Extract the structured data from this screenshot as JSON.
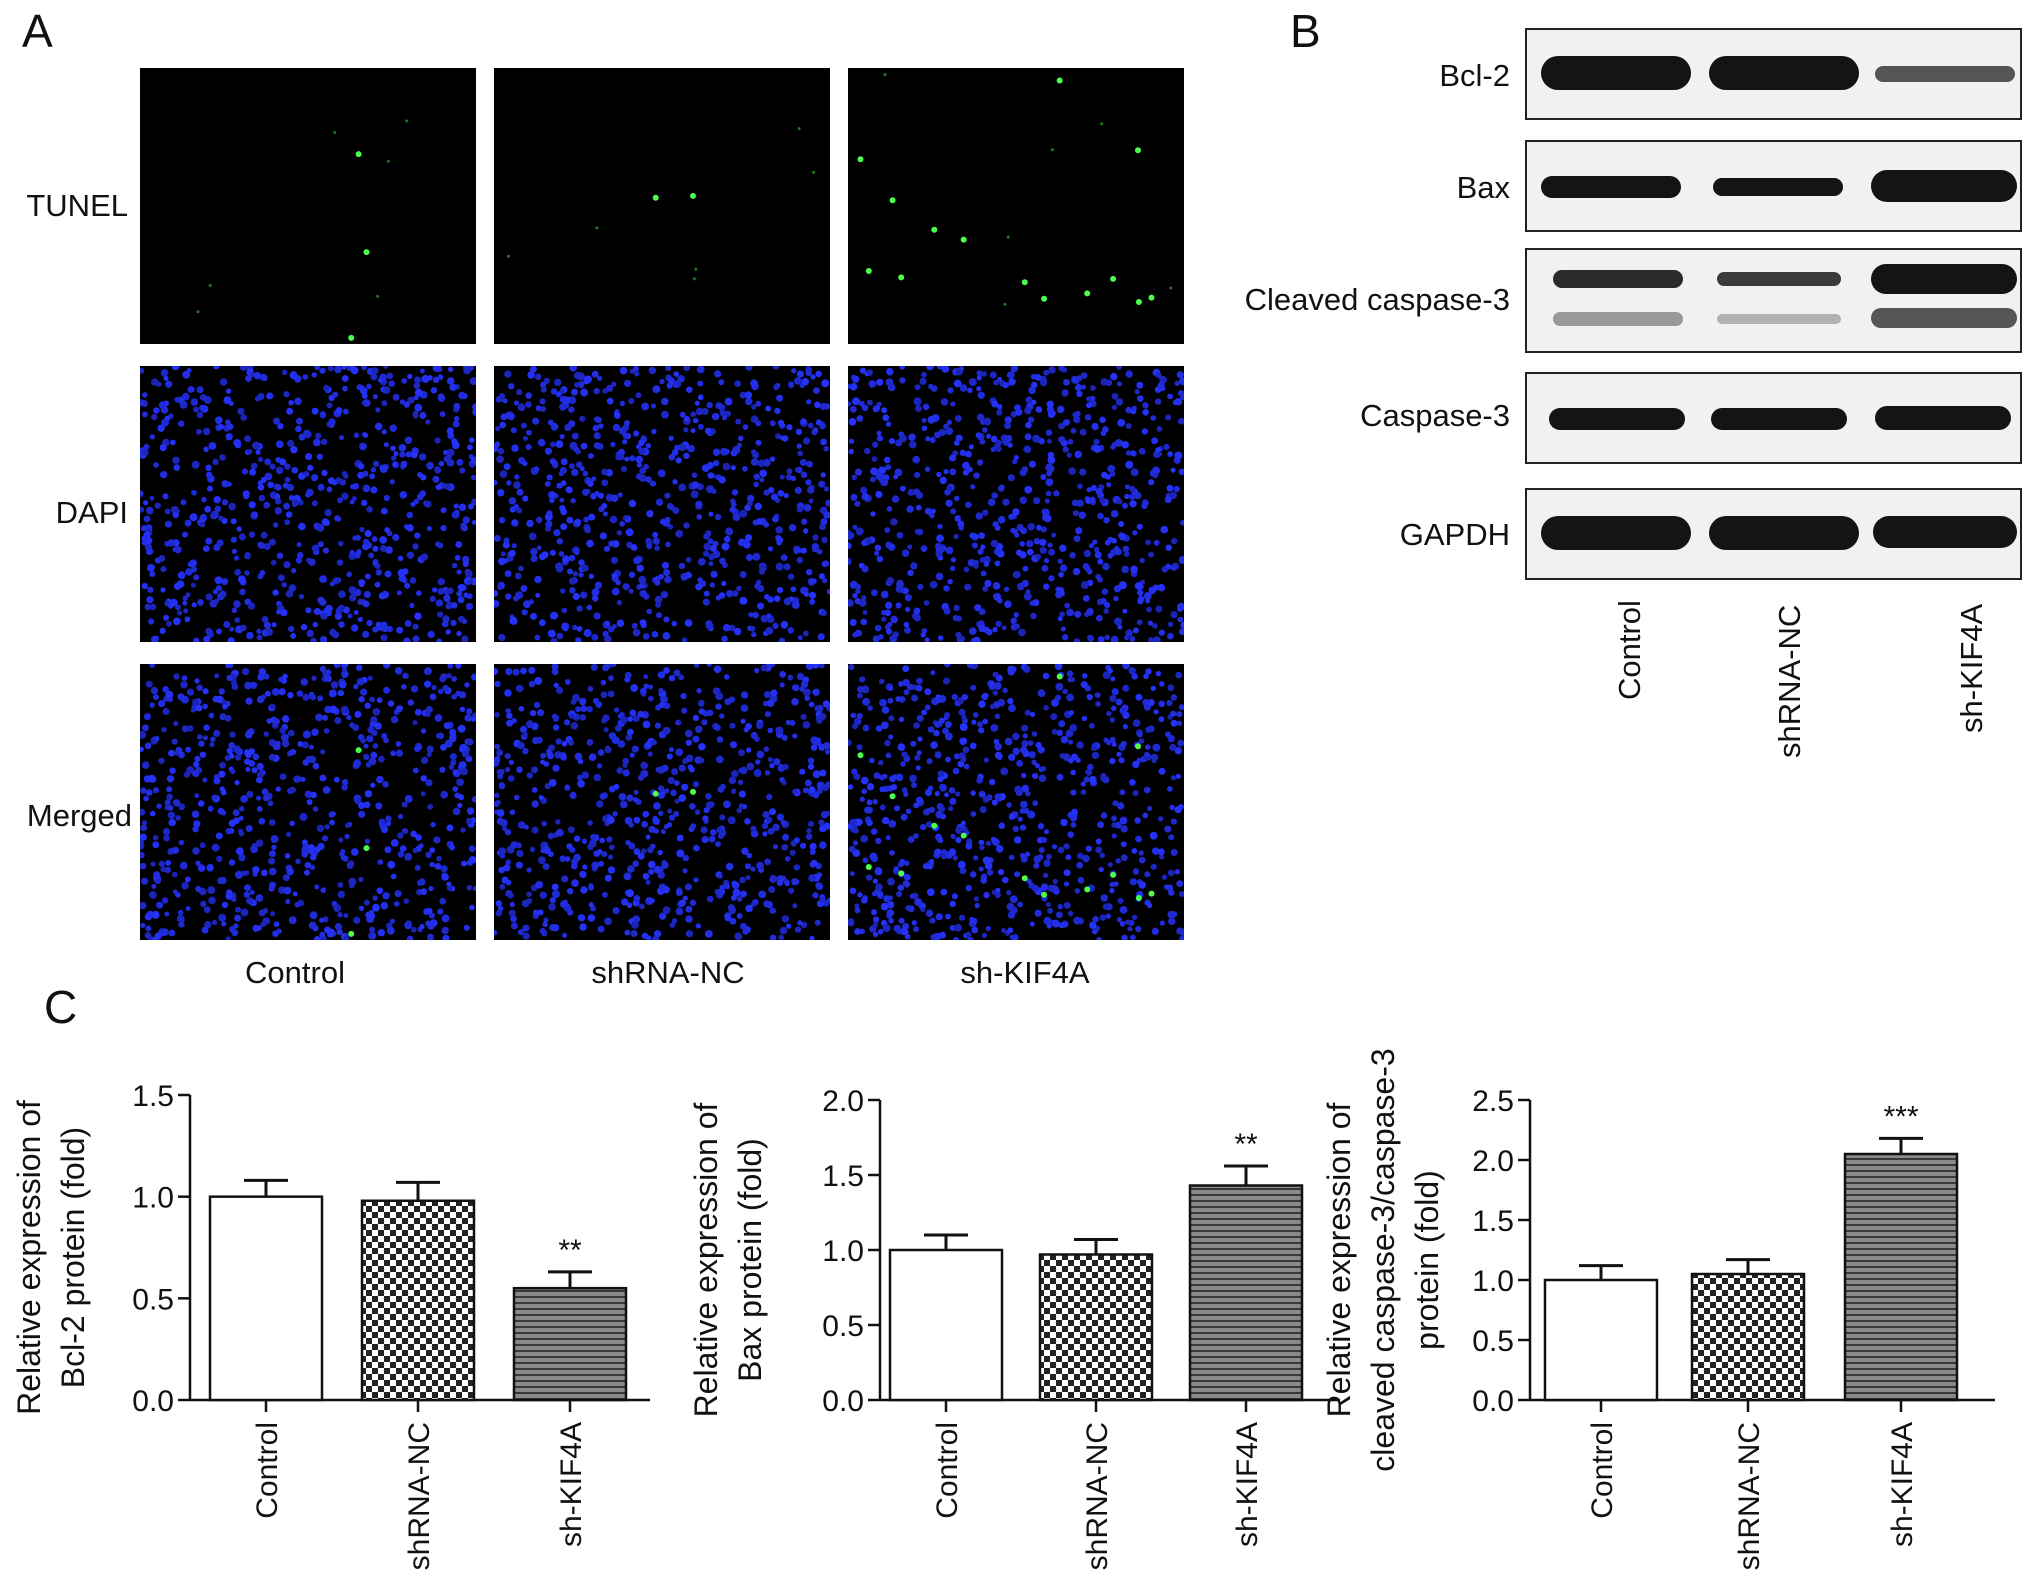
{
  "panel_a": {
    "letter": "A",
    "row_labels": [
      "TUNEL",
      "DAPI",
      "Merged"
    ],
    "column_labels": [
      "Control",
      "shRNA-NC",
      "sh-KIF4A"
    ],
    "tunel_positive_counts": [
      3,
      2,
      14
    ]
  },
  "panel_b": {
    "letter": "B",
    "proteins": [
      "Bcl-2",
      "Bax",
      "Cleaved caspase-3",
      "Caspase-3",
      "GAPDH"
    ],
    "lanes": [
      "Control",
      "shRNA-NC",
      "sh-KIF4A"
    ]
  },
  "panel_c": {
    "letter": "C"
  },
  "chart_data": [
    {
      "type": "bar",
      "categories": [
        "Control",
        "shRNA-NC",
        "sh-KIF4A"
      ],
      "values": [
        1.0,
        0.98,
        0.55
      ],
      "errors": [
        0.08,
        0.09,
        0.08
      ],
      "significance": [
        "",
        "",
        "**"
      ],
      "title": "",
      "xlabel": "",
      "ylabel_lines": [
        "Relative expression of",
        "Bcl-2 protein (fold)"
      ],
      "ylim": [
        0,
        1.5
      ],
      "yticks": [
        "0.0",
        "0.5",
        "1.0",
        "1.5"
      ],
      "grid": false
    },
    {
      "type": "bar",
      "categories": [
        "Control",
        "shRNA-NC",
        "sh-KIF4A"
      ],
      "values": [
        1.0,
        0.97,
        1.43
      ],
      "errors": [
        0.1,
        0.1,
        0.13
      ],
      "significance": [
        "",
        "",
        "**"
      ],
      "title": "",
      "xlabel": "",
      "ylabel_lines": [
        "Relative expression of",
        "Bax protein (fold)"
      ],
      "ylim": [
        0,
        2.0
      ],
      "yticks": [
        "0.0",
        "0.5",
        "1.0",
        "1.5",
        "2.0"
      ],
      "grid": false
    },
    {
      "type": "bar",
      "categories": [
        "Control",
        "shRNA-NC",
        "sh-KIF4A"
      ],
      "values": [
        1.0,
        1.05,
        2.05
      ],
      "errors": [
        0.12,
        0.12,
        0.13
      ],
      "significance": [
        "",
        "",
        "***"
      ],
      "title": "",
      "xlabel": "",
      "ylabel_lines": [
        "Relative expression of",
        "cleaved caspase-3/caspase-3",
        "protein (fold)"
      ],
      "ylim": [
        0,
        2.5
      ],
      "yticks": [
        "0.0",
        "0.5",
        "1.0",
        "1.5",
        "2.0",
        "2.5"
      ],
      "grid": false
    }
  ]
}
